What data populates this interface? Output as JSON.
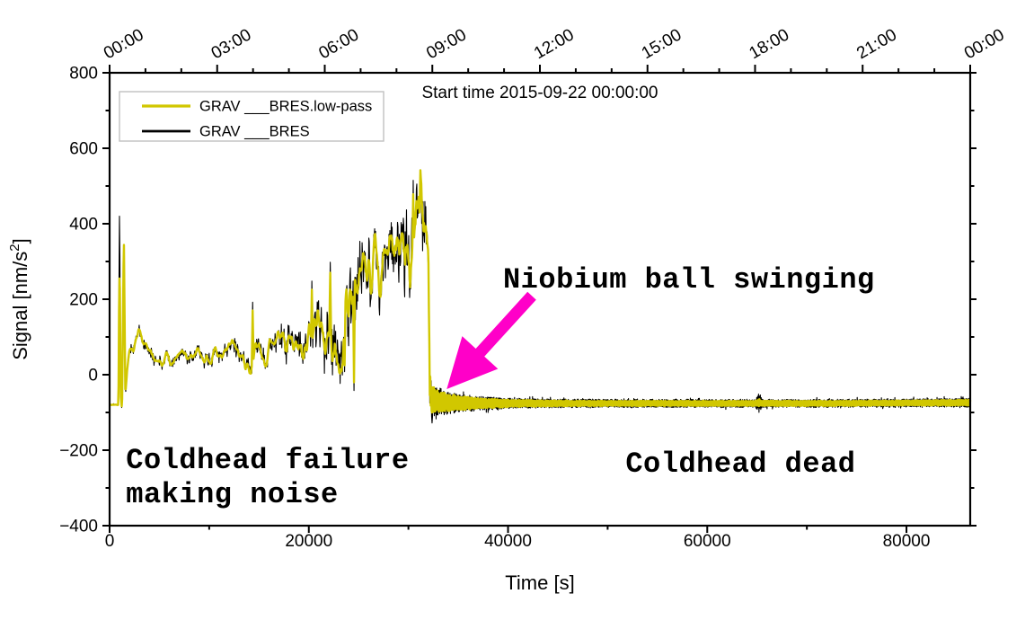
{
  "page": {
    "background": "#ffffff"
  },
  "chart_data": {
    "type": "line",
    "title": "Start time 2015-09-22 00:00:00",
    "xlabel": "Time [s]",
    "ylabel": "Signal [nm/s²]",
    "xlim": [
      0,
      86400
    ],
    "ylim": [
      -400,
      800
    ],
    "x_major_ticks": [
      0,
      20000,
      40000,
      60000,
      80000
    ],
    "x_minor_step": 10000,
    "y_major_step": 200,
    "y_minor_step": 100,
    "grid": "off",
    "legend_position": "top-left",
    "top_axis": {
      "major_labels": [
        "00:00",
        "03:00",
        "06:00",
        "09:00",
        "12:00",
        "15:00",
        "18:00",
        "21:00",
        "00:00"
      ],
      "major_step_s": 10800,
      "minor_step_s": 3600
    },
    "legend": {
      "items": [
        {
          "label": "GRAV ___BRES.low-pass",
          "color": "#d1c700"
        },
        {
          "label": "GRAV ___BRES",
          "color": "#000000"
        }
      ]
    },
    "series": [
      {
        "name": "GRAV ___BRES",
        "role": "raw",
        "color": "#000000"
      },
      {
        "name": "GRAV ___BRES.low-pass",
        "role": "low_pass",
        "color": "#d1c700"
      }
    ],
    "signal_envelope": {
      "comment": "columns: t_seconds, mean_nm_per_s2, raw_half_amplitude, lowpass_half_amplitude (values read off the plot)",
      "points": [
        [
          0,
          -77,
          5,
          3
        ],
        [
          880,
          -77,
          5,
          3
        ],
        [
          960,
          120,
          12,
          8
        ],
        [
          1020,
          250,
          14,
          8
        ],
        [
          1120,
          -60,
          12,
          8
        ],
        [
          1250,
          -95,
          8,
          5
        ],
        [
          1430,
          370,
          10,
          6
        ],
        [
          1580,
          -55,
          10,
          6
        ],
        [
          1750,
          5,
          14,
          8
        ],
        [
          2000,
          60,
          20,
          11
        ],
        [
          2400,
          55,
          24,
          13
        ],
        [
          2900,
          105,
          24,
          13
        ],
        [
          3300,
          80,
          24,
          13
        ],
        [
          3800,
          48,
          22,
          12
        ],
        [
          5000,
          40,
          22,
          12
        ],
        [
          7000,
          42,
          23,
          12
        ],
        [
          9000,
          45,
          25,
          13
        ],
        [
          11000,
          50,
          28,
          15
        ],
        [
          13000,
          58,
          32,
          17
        ],
        [
          14200,
          62,
          50,
          26
        ],
        [
          14700,
          60,
          34,
          18
        ],
        [
          16000,
          70,
          40,
          21
        ],
        [
          17500,
          82,
          48,
          26
        ],
        [
          19000,
          92,
          58,
          30
        ],
        [
          20200,
          105,
          75,
          38
        ],
        [
          21000,
          115,
          85,
          44
        ],
        [
          22000,
          125,
          105,
          52
        ],
        [
          23000,
          135,
          115,
          58
        ],
        [
          24000,
          145,
          135,
          66
        ],
        [
          25000,
          175,
          135,
          66
        ],
        [
          26000,
          205,
          125,
          62
        ],
        [
          27000,
          245,
          115,
          58
        ],
        [
          28000,
          285,
          115,
          58
        ],
        [
          29000,
          310,
          120,
          60
        ],
        [
          30000,
          330,
          130,
          65
        ],
        [
          30600,
          355,
          150,
          75
        ],
        [
          31200,
          375,
          140,
          70
        ],
        [
          31700,
          365,
          110,
          55
        ],
        [
          32000,
          352,
          70,
          35
        ],
        [
          32130,
          -25,
          45,
          38
        ],
        [
          32260,
          -58,
          48,
          40
        ],
        [
          32600,
          -68,
          42,
          34
        ],
        [
          33200,
          -72,
          36,
          28
        ],
        [
          34000,
          -74,
          30,
          23
        ],
        [
          35500,
          -75,
          24,
          18
        ],
        [
          37500,
          -76,
          18,
          13
        ],
        [
          40000,
          -76,
          14,
          10
        ],
        [
          44000,
          -76,
          12,
          8
        ],
        [
          50000,
          -76,
          11,
          7
        ],
        [
          58000,
          -76,
          11,
          7
        ],
        [
          64800,
          -76,
          11,
          7
        ],
        [
          65200,
          -74,
          26,
          10
        ],
        [
          65600,
          -76,
          11,
          7
        ],
        [
          72000,
          -76,
          11,
          7
        ],
        [
          80000,
          -75,
          11,
          7
        ],
        [
          86400,
          -74,
          12,
          8
        ]
      ],
      "spikes": [
        [
          1000,
          420,
          255
        ],
        [
          14350,
          192,
          170
        ],
        [
          20300,
          248,
          225
        ],
        [
          22150,
          298,
          270
        ],
        [
          23600,
          8,
          25
        ],
        [
          24520,
          -42,
          -20
        ],
        [
          30500,
          515,
          478
        ],
        [
          30800,
          492,
          460
        ],
        [
          31100,
          462,
          430
        ],
        [
          32350,
          -128,
          -100
        ]
      ],
      "ball_swinging_start_t": 32100
    },
    "annotations": {
      "color": "#ff00c8",
      "items": [
        {
          "id": "niobium-ball",
          "lines": [
            "Niobium ball swinging"
          ],
          "t": 39500,
          "v": 290
        },
        {
          "id": "coldhead-failure",
          "lines": [
            "Coldhead failure",
            "making noise"
          ],
          "t": 1650,
          "v": -188
        },
        {
          "id": "coldhead-dead",
          "lines": [
            "Coldhead dead"
          ],
          "t": 51800,
          "v": -198
        }
      ],
      "arrow": {
        "tail_t": 42390,
        "tail_v": 209,
        "tip_t": 33850,
        "tip_v": -38
      }
    }
  }
}
